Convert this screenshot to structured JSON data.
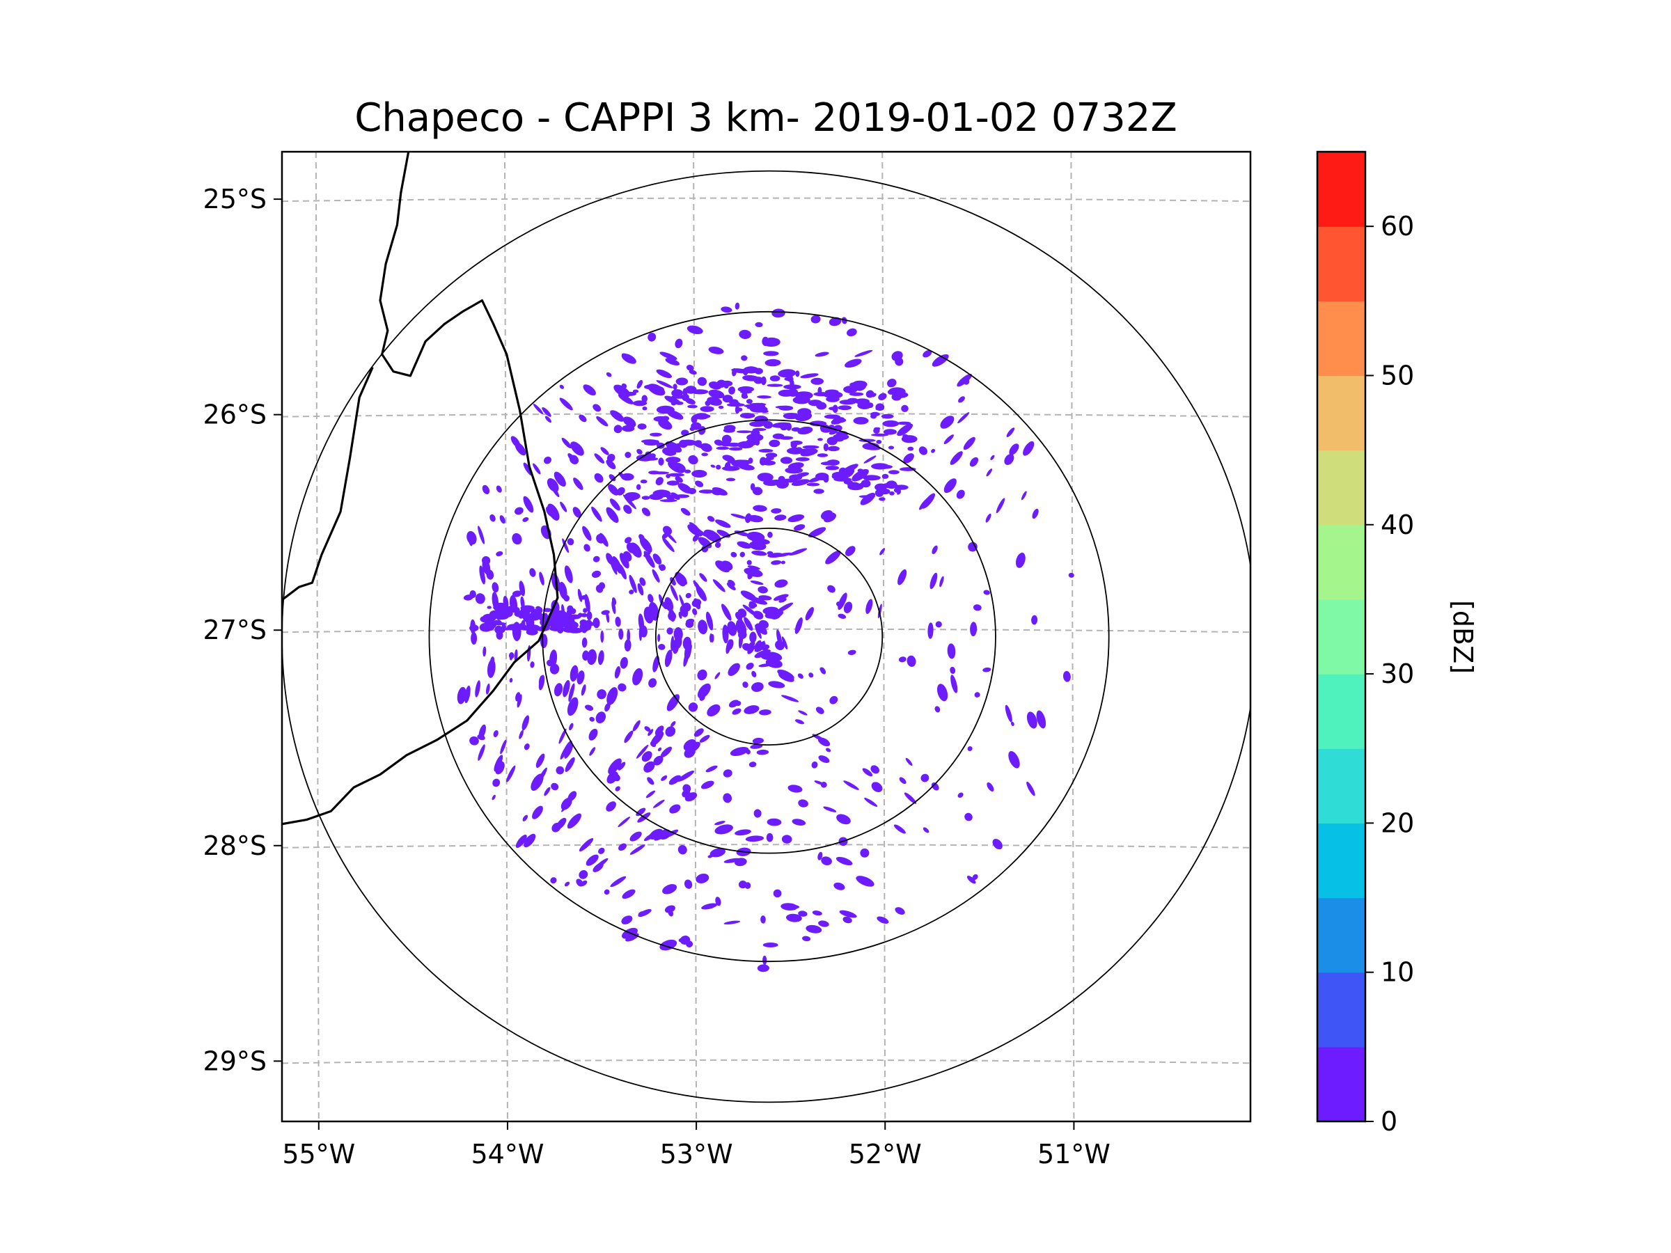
{
  "chart_data": {
    "type": "scatter",
    "title": "Chapeco - CAPPI 3 km- 2019-01-02 0732Z",
    "xlabel": "",
    "ylabel": "",
    "xlim": [
      -55.18,
      -50.05
    ],
    "ylim": [
      -29.28,
      -24.78
    ],
    "x_ticks": [
      {
        "value": -55,
        "label": "55°W"
      },
      {
        "value": -54,
        "label": "54°W"
      },
      {
        "value": -53,
        "label": "53°W"
      },
      {
        "value": -52,
        "label": "52°W"
      },
      {
        "value": -51,
        "label": "51°W"
      }
    ],
    "y_ticks": [
      {
        "value": -25,
        "label": "25°S"
      },
      {
        "value": -26,
        "label": "26°S"
      },
      {
        "value": -27,
        "label": "27°S"
      },
      {
        "value": -28,
        "label": "28°S"
      },
      {
        "value": -29,
        "label": "29°S"
      }
    ],
    "grid": true,
    "radar_site": {
      "lon": -52.6,
      "lat": -27.03
    },
    "range_rings_deg": [
      0.5,
      1.0,
      1.5,
      2.15
    ],
    "reflectivity_range_dbz": [
      0,
      5
    ],
    "echo_color": "#6c1cff",
    "colorbar": {
      "label": "[dBZ]",
      "min": 0,
      "max": 65,
      "ticks": [
        0,
        10,
        20,
        30,
        40,
        50,
        60
      ],
      "tick_labels": [
        "0",
        "10",
        "20",
        "30",
        "40",
        "50",
        "60"
      ],
      "colors": [
        "#6c1cff",
        "#4055f5",
        "#1b8ee8",
        "#06c0e5",
        "#2fdcd6",
        "#4ff2bc",
        "#7ff9a6",
        "#a4f58b",
        "#cfde7b",
        "#f2bd6a",
        "#ff8e4d",
        "#ff5530",
        "#ff1b15"
      ]
    },
    "borders": [
      [
        [
          -54.51,
          -24.78
        ],
        [
          -54.55,
          -24.97
        ],
        [
          -54.57,
          -25.12
        ],
        [
          -54.63,
          -25.3
        ],
        [
          -54.66,
          -25.47
        ],
        [
          -54.62,
          -25.61
        ],
        [
          -54.65,
          -25.72
        ],
        [
          -54.59,
          -25.8
        ],
        [
          -54.5,
          -25.82
        ],
        [
          -54.42,
          -25.66
        ],
        [
          -54.32,
          -25.58
        ],
        [
          -54.22,
          -25.52
        ],
        [
          -54.12,
          -25.47
        ],
        [
          -54.06,
          -25.58
        ],
        [
          -53.99,
          -25.72
        ],
        [
          -53.92,
          -25.98
        ],
        [
          -53.87,
          -26.24
        ],
        [
          -53.79,
          -26.45
        ],
        [
          -53.74,
          -26.65
        ],
        [
          -53.72,
          -26.85
        ],
        [
          -53.82,
          -27.05
        ],
        [
          -53.95,
          -27.15
        ],
        [
          -54.06,
          -27.28
        ],
        [
          -54.2,
          -27.42
        ],
        [
          -54.36,
          -27.51
        ],
        [
          -54.52,
          -27.58
        ],
        [
          -54.66,
          -27.67
        ],
        [
          -54.8,
          -27.73
        ],
        [
          -54.92,
          -27.84
        ],
        [
          -55.05,
          -27.88
        ],
        [
          -55.18,
          -27.9
        ]
      ],
      [
        [
          -54.7,
          -25.78
        ],
        [
          -54.77,
          -25.92
        ],
        [
          -54.82,
          -26.2
        ],
        [
          -54.87,
          -26.45
        ],
        [
          -54.97,
          -26.65
        ],
        [
          -55.02,
          -26.78
        ],
        [
          -55.09,
          -26.8
        ],
        [
          -55.18,
          -26.86
        ]
      ]
    ]
  }
}
